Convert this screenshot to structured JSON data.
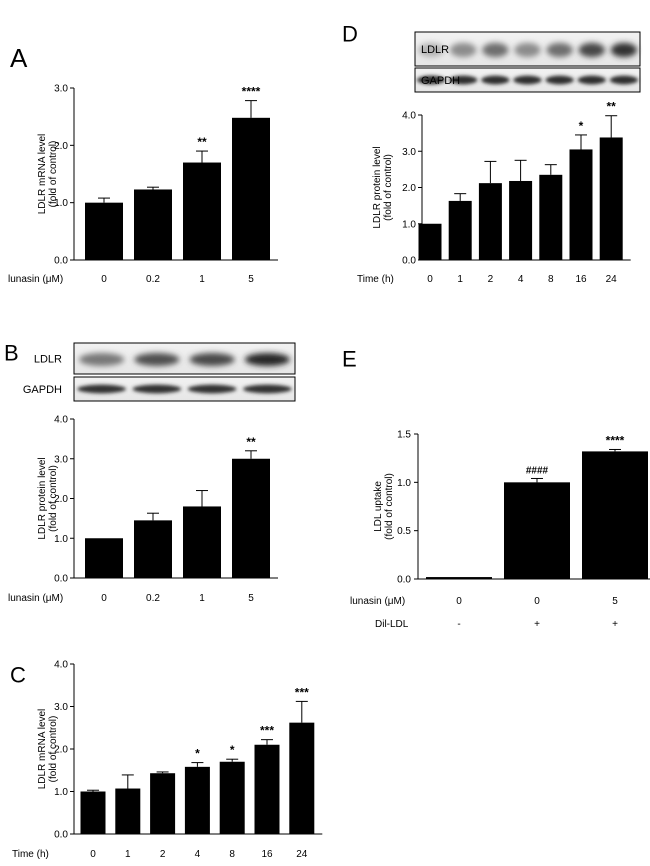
{
  "chart_data": [
    {
      "panel": "A",
      "type": "bar",
      "ylabel": [
        "LDLR mRNA level",
        "(fold of control)"
      ],
      "xlabel": "lunasin (μM)",
      "categories": [
        "0",
        "0.2",
        "1",
        "5"
      ],
      "values": [
        1.0,
        1.23,
        1.7,
        2.48
      ],
      "errors": [
        0.08,
        0.04,
        0.2,
        0.3
      ],
      "annotations": [
        "",
        "",
        "**",
        "****"
      ],
      "ylim": [
        0,
        3
      ],
      "yticks": [
        "0.0",
        "1.0",
        "2.0",
        "3.0"
      ]
    },
    {
      "panel": "B",
      "type": "bar",
      "ylabel": [
        "LDLR protein level",
        "(fold of control)"
      ],
      "xlabel": "lunasin (μM)",
      "blot_labels": [
        "LDLR",
        "GAPDH"
      ],
      "categories": [
        "0",
        "0.2",
        "1",
        "5"
      ],
      "values": [
        1.0,
        1.45,
        1.8,
        3.0
      ],
      "errors": [
        0.0,
        0.18,
        0.4,
        0.2
      ],
      "annotations": [
        "",
        "",
        "",
        "**"
      ],
      "ylim": [
        0,
        4
      ],
      "yticks": [
        "0.0",
        "1.0",
        "2.0",
        "3.0",
        "4.0"
      ]
    },
    {
      "panel": "C",
      "type": "bar",
      "ylabel": [
        "LDLR mRNA level",
        "(fold of control)"
      ],
      "xlabel": "Time (h)",
      "categories": [
        "0",
        "1",
        "2",
        "4",
        "8",
        "16",
        "24"
      ],
      "values": [
        1.0,
        1.07,
        1.43,
        1.58,
        1.7,
        2.1,
        2.62
      ],
      "errors": [
        0.03,
        0.32,
        0.03,
        0.1,
        0.06,
        0.12,
        0.5
      ],
      "annotations": [
        "",
        "",
        "",
        "*",
        "*",
        "***",
        "***"
      ],
      "ylim": [
        0,
        4
      ],
      "yticks": [
        "0.0",
        "1.0",
        "2.0",
        "3.0",
        "4.0"
      ]
    },
    {
      "panel": "D",
      "type": "bar",
      "ylabel": [
        "LDLR protein level",
        "(fold of control)"
      ],
      "xlabel": "Time (h)",
      "blot_labels": [
        "LDLR",
        "GAPDH"
      ],
      "categories": [
        "0",
        "1",
        "2",
        "4",
        "8",
        "16",
        "24"
      ],
      "values": [
        1.0,
        1.63,
        2.12,
        2.18,
        2.35,
        3.05,
        3.38
      ],
      "errors": [
        0.0,
        0.2,
        0.6,
        0.57,
        0.28,
        0.4,
        0.6
      ],
      "annotations": [
        "",
        "",
        "",
        "",
        "",
        "*",
        "**"
      ],
      "ylim": [
        0,
        4
      ],
      "yticks": [
        "0.0",
        "1.0",
        "2.0",
        "3.0",
        "4.0"
      ]
    },
    {
      "panel": "E",
      "type": "bar",
      "ylabel": [
        "LDL uptake",
        "(fold of control)"
      ],
      "xlabel": "lunasin (μM)",
      "xlabel2": "Dil-LDL",
      "categories": [
        "0",
        "0",
        "5"
      ],
      "categories2": [
        "-",
        "+",
        "+"
      ],
      "values": [
        0.02,
        1.0,
        1.32
      ],
      "errors": [
        0.0,
        0.04,
        0.02
      ],
      "annotations": [
        "",
        "####",
        "****"
      ],
      "ylim": [
        0,
        1.5
      ],
      "yticks": [
        "0.0",
        "0.5",
        "1.0",
        "1.5"
      ]
    }
  ]
}
